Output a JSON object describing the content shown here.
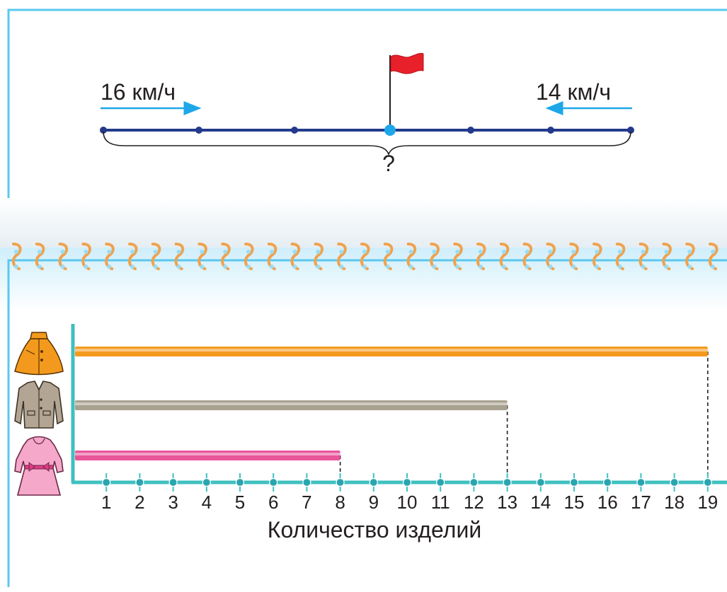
{
  "top_diagram": {
    "left_speed": "16 км/ч",
    "right_speed": "14 км/ч",
    "unknown_distance": "?"
  },
  "colors": {
    "frame": "#5bc8ee",
    "track": "#233a8b",
    "meeting_point": "#1ea7e8",
    "flag": "#e8202a",
    "arrow": "#1ea7e8",
    "ring": "#f0a24e",
    "axis": "#3fc0c0"
  },
  "chart_data": {
    "type": "bar",
    "orientation": "horizontal",
    "xlabel": "Количество изделий",
    "ylabel": "",
    "xlim": [
      0,
      19
    ],
    "x_ticks": [
      "1",
      "2",
      "3",
      "4",
      "5",
      "6",
      "7",
      "8",
      "9",
      "10",
      "11",
      "12",
      "13",
      "14",
      "15",
      "16",
      "17",
      "18",
      "19"
    ],
    "categories": [
      "cape-icon",
      "jacket-icon",
      "dress-icon"
    ],
    "values": [
      19,
      13,
      8
    ],
    "bar_colors": [
      "#f39a1e",
      "#a8a18f",
      "#e8559a"
    ],
    "dashed_guides": true
  }
}
